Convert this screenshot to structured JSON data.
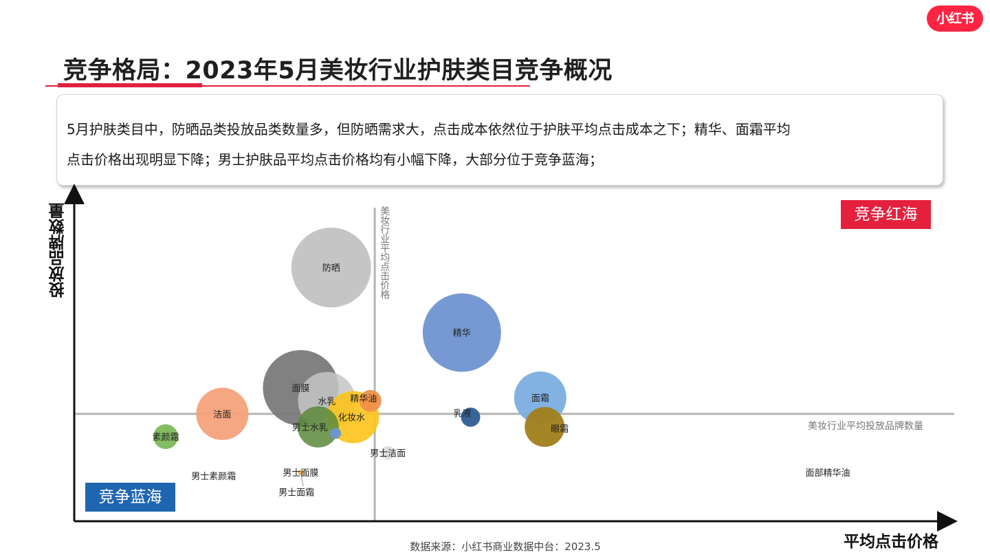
{
  "brand": {
    "logo_text": "小红书",
    "accent": "#ff2442"
  },
  "title": "竞争格局：2023年5月美妆行业护肤类目竞争概况",
  "summary": {
    "line1": "5月护肤类目中，防晒品类投放品类数量多，但防晒需求大，点击成本依然位于护肤平均点击成本之下；精华、面霜平均",
    "line2": "点击价格出现明显下降；男士护肤品平均点击价格均有小幅下降，大部分位于竞争蓝海；"
  },
  "quadrants": {
    "red_ocean": "竞争红海",
    "blue_ocean": "竞争蓝海",
    "red_color": "#e5203c",
    "blue_color": "#1f66b0"
  },
  "source": "数据来源：小红书商业数据中台：2023.5",
  "chart_data": {
    "type": "scatter",
    "variant": "bubble",
    "xlabel": "平均点击价格",
    "ylabel": "投放品牌数量",
    "x_ticks_shown": false,
    "y_ticks_shown": false,
    "xlim": [
      0,
      100
    ],
    "ylim": [
      0,
      100
    ],
    "grid": false,
    "reference_lines": {
      "vertical": {
        "label": "美妆行业平均点击价格",
        "x": 34.5
      },
      "horizontal": {
        "label": "美妆行业平均投放品牌数量",
        "y": 33
      }
    },
    "points": [
      {
        "name": "防晒",
        "x": 29.5,
        "y": 78,
        "size": 58,
        "color": "#c2c2c2",
        "label_offset": [
          0,
          0
        ]
      },
      {
        "name": "精华",
        "x": 44.5,
        "y": 58,
        "size": 57,
        "color": "#6f93d2",
        "label_offset": [
          0,
          0
        ]
      },
      {
        "name": "面膜",
        "x": 26,
        "y": 41,
        "size": 55,
        "color": "#7a7a7a",
        "label_offset": [
          0,
          0
        ]
      },
      {
        "name": "水乳",
        "x": 29,
        "y": 37,
        "size": 42,
        "color": "#c6c6c6",
        "opacity": 0.85,
        "label_offset": [
          0,
          0
        ]
      },
      {
        "name": "化妆水",
        "x": 32,
        "y": 32,
        "size": 38,
        "color": "#fcc419",
        "opacity": 0.9,
        "label_offset": [
          -2,
          0
        ]
      },
      {
        "name": "精华油",
        "x": 34,
        "y": 37,
        "size": 16,
        "color": "#f0904a",
        "label_offset": [
          -10,
          -4
        ]
      },
      {
        "name": "洁面",
        "x": 17,
        "y": 33,
        "size": 38,
        "color": "#f4a27a",
        "label_offset": [
          0,
          0
        ]
      },
      {
        "name": "男士水乳",
        "x": 28,
        "y": 29,
        "size": 30,
        "color": "#5a8a3a",
        "opacity": 0.85,
        "label_offset": [
          -12,
          0
        ]
      },
      {
        "name": "乳液",
        "x": 45.5,
        "y": 32,
        "size": 14,
        "color": "#2e5d93",
        "label_offset": [
          -12,
          -6
        ]
      },
      {
        "name": "面霜",
        "x": 53.5,
        "y": 38,
        "size": 38,
        "color": "#7aaee0",
        "label_offset": [
          0,
          0
        ]
      },
      {
        "name": "眼霜",
        "x": 54,
        "y": 29,
        "size": 29,
        "color": "#a0801a",
        "label_offset": [
          22,
          2
        ]
      },
      {
        "name": "素颜霜",
        "x": 10.5,
        "y": 26,
        "size": 18,
        "color": "#7cb85a",
        "label_offset": [
          0,
          0
        ]
      },
      {
        "name": "男士洁面",
        "x": 36,
        "y": 21,
        "size": 10,
        "color": "#dddddd",
        "label_offset": [
          0,
          0
        ]
      },
      {
        "name": "男士素颜霜",
        "x": 16,
        "y": 14,
        "size": 0,
        "color": "#bbbbbb",
        "label_offset": [
          0,
          0
        ]
      },
      {
        "name": "男士面膜",
        "x": 26,
        "y": 15,
        "size": 4,
        "color": "#f2b23a",
        "label_offset": [
          0,
          0
        ]
      },
      {
        "name": "男士面霜",
        "x": 25.5,
        "y": 9,
        "size": 0,
        "color": "#bbbbbb",
        "label_offset": [
          0,
          0
        ],
        "leader_to": [
          26,
          15
        ]
      },
      {
        "name": "面部精华油",
        "x": 86.5,
        "y": 15,
        "size": 0,
        "color": "#bbbbbb",
        "label_offset": [
          0,
          0
        ]
      },
      {
        "name": "",
        "x": 30,
        "y": 27,
        "size": 8,
        "color": "#6f93d2",
        "label_offset": [
          0,
          0
        ]
      }
    ]
  }
}
